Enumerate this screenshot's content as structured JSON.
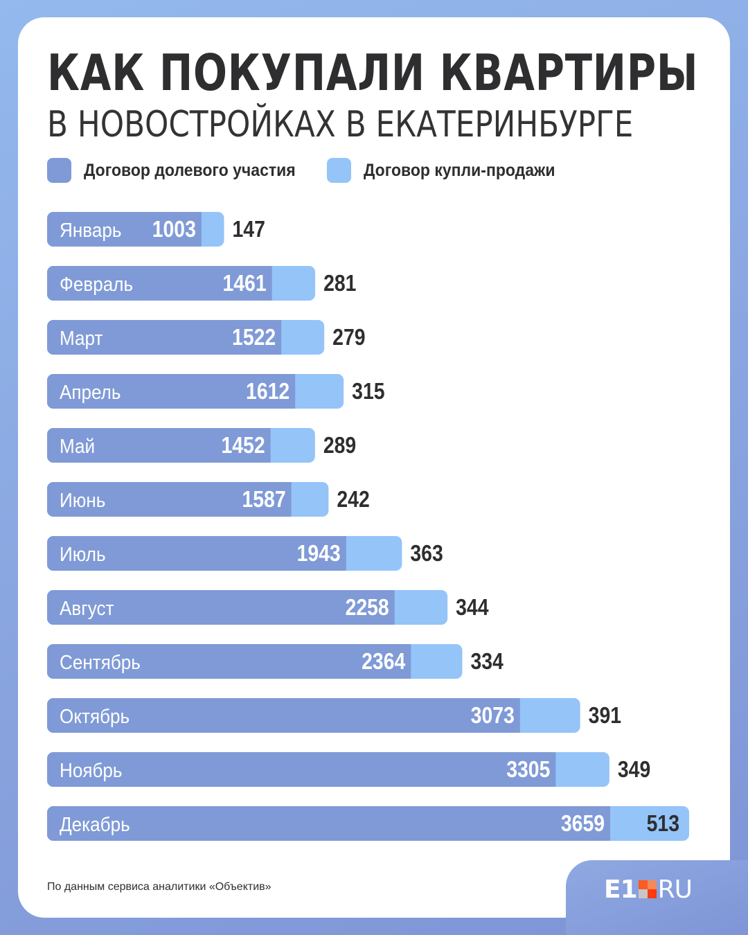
{
  "title": "КАК ПОКУПАЛИ КВАРТИРЫ",
  "subtitle": "В НОВОСТРОЙКАХ В ЕКАТЕРИНБУРГЕ",
  "legend": [
    {
      "label": "Договор долевого участия",
      "color": "#7f9ad6"
    },
    {
      "label": "Договор купли-продажи",
      "color": "#94c4f8"
    }
  ],
  "source": "По данным сервиса аналитики «Объектив»",
  "logo": {
    "text": "E1",
    "suffix": "RU",
    "square_colors": [
      "#ff5a1f",
      "#f28a5a",
      "#c7c7c7",
      "#ff3a10"
    ]
  },
  "colors": {
    "title": "#2e2e30",
    "bar_primary": "#7f9ad6",
    "bar_secondary": "#94c4f8",
    "background": "#8aa6e0"
  },
  "chart_data": {
    "type": "bar",
    "orientation": "horizontal",
    "stacked": true,
    "categories": [
      "Январь",
      "Февраль",
      "Март",
      "Апрель",
      "Май",
      "Июнь",
      "Июль",
      "Август",
      "Сентябрь",
      "Октябрь",
      "Ноябрь",
      "Декабрь"
    ],
    "series": [
      {
        "name": "Договор долевого участия",
        "values": [
          1003,
          1461,
          1522,
          1612,
          1452,
          1587,
          1943,
          2258,
          2364,
          3073,
          3305,
          3659
        ],
        "color": "#7f9ad6"
      },
      {
        "name": "Договор купли-продажи",
        "values": [
          147,
          281,
          279,
          315,
          289,
          242,
          363,
          344,
          334,
          391,
          349,
          513
        ],
        "color": "#94c4f8"
      }
    ],
    "title": "КАК ПОКУПАЛИ КВАРТИРЫ",
    "subtitle": "В НОВОСТРОЙКАХ В ЕКАТЕРИНБУРГЕ",
    "xlabel": "",
    "ylabel": "",
    "xlim": [
      0,
      4172
    ],
    "grid": false,
    "legend_position": "top"
  }
}
